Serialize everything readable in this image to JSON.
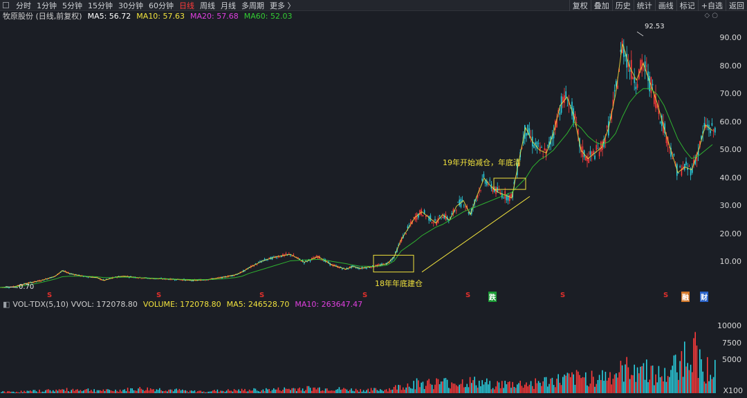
{
  "toolbar": {
    "periods": [
      "分时",
      "1分钟",
      "5分钟",
      "15分钟",
      "30分钟",
      "60分钟",
      "日线",
      "周线",
      "月线",
      "多周期",
      "更多 〉"
    ],
    "active_period": "日线",
    "tools": [
      "复权",
      "叠加",
      "历史",
      "统计",
      "画线",
      "标记",
      "+自选",
      "返回"
    ]
  },
  "legend": {
    "stock": "牧原股份 (日线,前复权)",
    "ma5": "MA5: 56.72",
    "ma10": "MA10: 57.63",
    "ma20": "MA20: 57.68",
    "ma60": "MA60: 52.03"
  },
  "vol_legend": {
    "name": "VOL-TDX(5,10) VVOL: 172078.80",
    "volume": "VOLUME: 172078.80",
    "ma5": "MA5: 246528.70",
    "ma10": "MA10: 263647.47"
  },
  "annotations": {
    "top": "19年开始减仓，年底清",
    "bottom": "18年年底建仓",
    "peak": "92.53",
    "low": "0.70"
  },
  "events": [
    "S",
    "S",
    "S",
    "S",
    "S",
    "跌",
    "S",
    "S",
    "融",
    "财"
  ],
  "x100": "X100",
  "colors": {
    "up": "#ff3b3b",
    "down": "#2ad0e0",
    "ma5": "#ffffff",
    "ma10": "#f2e33d",
    "ma20": "#e040e0",
    "ma60": "#33cc33",
    "annotation": "#f2e33d"
  },
  "chart_data": [
    {
      "type": "line",
      "title": "牧原股份 (日线,前复权)",
      "y_ticks": [
        "90.00",
        "80.00",
        "70.00",
        "60.00",
        "50.00",
        "40.00",
        "30.00",
        "20.00",
        "10.00"
      ],
      "ylim": [
        0,
        95
      ],
      "x": [
        0,
        20,
        40,
        60,
        80,
        90,
        100,
        120,
        140,
        150,
        160,
        170,
        180,
        200,
        220,
        240,
        260,
        280,
        300,
        320,
        340,
        350,
        360,
        380,
        400,
        420,
        440,
        460,
        470,
        480,
        500,
        510,
        520,
        540,
        550,
        560,
        570,
        580,
        600,
        610,
        620,
        630,
        640,
        650,
        660,
        670,
        680,
        690,
        700,
        710,
        720,
        730,
        740,
        750,
        760,
        770,
        780,
        790,
        800,
        810,
        820,
        830,
        840,
        850,
        860,
        870,
        880,
        890,
        900,
        910,
        920,
        930,
        940,
        950,
        960,
        970,
        980,
        990,
        1000,
        1010,
        1020,
        1030
      ],
      "series": [
        {
          "name": "MA5",
          "values": [
            1.0,
            1.2,
            2.5,
            3.5,
            5.0,
            7.0,
            6.0,
            5.0,
            4.5,
            3.5,
            4.2,
            4.8,
            5.0,
            4.5,
            4.2,
            4.0,
            3.8,
            3.5,
            3.8,
            4.5,
            5.5,
            6.5,
            8.0,
            10.5,
            12.0,
            12.8,
            10.0,
            12.0,
            10.5,
            9.0,
            7.5,
            8.5,
            7.8,
            8.5,
            9.0,
            9.5,
            12.0,
            18.0,
            26.0,
            28.0,
            26.0,
            24.0,
            27.0,
            25.0,
            30.0,
            32.0,
            27.0,
            34.0,
            40.0,
            37.0,
            35.0,
            34.0,
            33.0,
            46.0,
            58.0,
            53.0,
            50.0,
            49.0,
            56.0,
            66.0,
            69.0,
            62.0,
            50.0,
            47.0,
            49.0,
            51.0,
            58.0,
            70.0,
            88.0,
            80.0,
            75.0,
            81.0,
            74.0,
            67.0,
            58.0,
            50.0,
            42.0,
            44.0,
            43.0,
            50.0,
            59.0,
            57.0
          ]
        },
        {
          "name": "MA60",
          "values": [
            1.0,
            1.1,
            1.8,
            2.8,
            4.0,
            4.8,
            5.0,
            5.0,
            4.8,
            4.5,
            4.5,
            4.6,
            4.7,
            4.5,
            4.3,
            4.1,
            3.9,
            3.8,
            3.8,
            4.0,
            4.5,
            5.0,
            6.0,
            7.5,
            9.0,
            10.5,
            10.8,
            11.0,
            10.8,
            10.3,
            9.5,
            9.0,
            8.6,
            8.5,
            8.6,
            9.0,
            10.5,
            14.0,
            17.5,
            19.5,
            21.0,
            22.5,
            23.5,
            25.0,
            26.5,
            28.0,
            29.0,
            30.0,
            31.0,
            32.0,
            33.0,
            34.0,
            35.0,
            37.5,
            40.0,
            44.0,
            46.5,
            48.0,
            50.0,
            53.0,
            56.0,
            60.0,
            58.0,
            55.0,
            53.0,
            52.0,
            53.0,
            56.0,
            62.0,
            67.0,
            70.0,
            72.0,
            72.0,
            70.0,
            66.0,
            60.0,
            54.0,
            50.0,
            47.0,
            48.0,
            50.0,
            52.0
          ]
        }
      ]
    },
    {
      "type": "bar",
      "title": "VOL-TDX(5,10)",
      "y_ticks": [
        "10000",
        "7500",
        "5000"
      ],
      "ylim": [
        0,
        12000
      ],
      "x": [
        0,
        40,
        80,
        120,
        160,
        200,
        240,
        280,
        320,
        360,
        400,
        440,
        480,
        520,
        560,
        600,
        640,
        680,
        720,
        760,
        800,
        840,
        880,
        900,
        920,
        960,
        980,
        1000,
        1020
      ],
      "values": [
        200,
        300,
        500,
        600,
        400,
        700,
        600,
        300,
        400,
        500,
        600,
        800,
        700,
        500,
        600,
        1600,
        1700,
        1800,
        1400,
        1500,
        2000,
        2500,
        2800,
        3500,
        4500,
        2600,
        4800,
        7500,
        4000
      ]
    }
  ]
}
